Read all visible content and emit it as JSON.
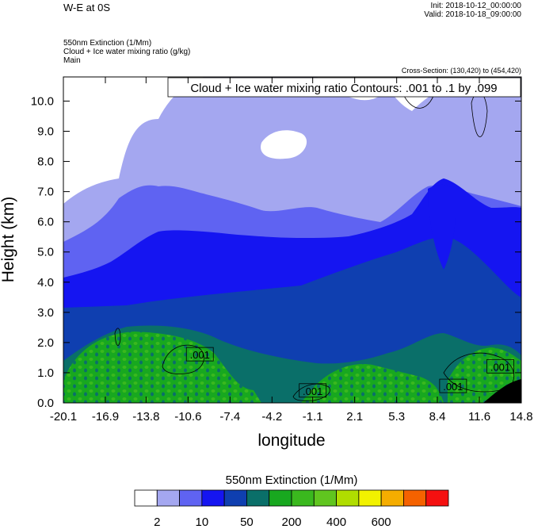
{
  "header": {
    "title": "W-E at 0S",
    "init": "Init: 2018-10-12_00:00:00",
    "valid": "Valid: 2018-10-18_09:00:00",
    "field1": "550nm Extinction   (1/Mm)",
    "field2": "Cloud + Ice water mixing ratio   (g/kg)",
    "field3": "Main",
    "cross_section": "Cross-Section: (130,420) to (454,420)"
  },
  "chart_data": {
    "type": "heatmap",
    "title": "Cloud + Ice water mixing ratio Contours: .001 to .1 by .099",
    "xlabel": "longitude",
    "ylabel": "Height (km)",
    "x_ticks": [
      "-20.1",
      "-16.9",
      "-13.8",
      "-10.6",
      "-7.4",
      "-4.2",
      "-1.1",
      "2.1",
      "5.3",
      "8.4",
      "11.6",
      "14.8"
    ],
    "y_ticks": [
      "0.0",
      "1.0",
      "2.0",
      "3.0",
      "4.0",
      "5.0",
      "6.0",
      "7.0",
      "8.0",
      "9.0",
      "10.0"
    ],
    "xlim": [
      -20.1,
      14.8
    ],
    "ylim": [
      0,
      10.8
    ],
    "contour_labels": [
      {
        "text": ".001",
        "lon": -9.7,
        "height": 1.6
      },
      {
        "text": ".001",
        "lon": -1.1,
        "height": 0.4
      },
      {
        "text": ".001",
        "lon": 9.6,
        "height": 0.55
      },
      {
        "text": ".001",
        "lon": 13.2,
        "height": 1.2
      }
    ],
    "colorbar": {
      "title": "550nm Extinction  (1/Mm)",
      "colors": [
        "#ffffff",
        "#a4a7f0",
        "#5f63f2",
        "#1515f1",
        "#0f3fb0",
        "#0a6f69",
        "#18a81f",
        "#3ab81e",
        "#60c51f",
        "#b0dd00",
        "#f2f200",
        "#f5ad00",
        "#f56200",
        "#f51010"
      ],
      "tick_labels": [
        "2",
        "10",
        "50",
        "200",
        "400",
        "600"
      ]
    }
  }
}
